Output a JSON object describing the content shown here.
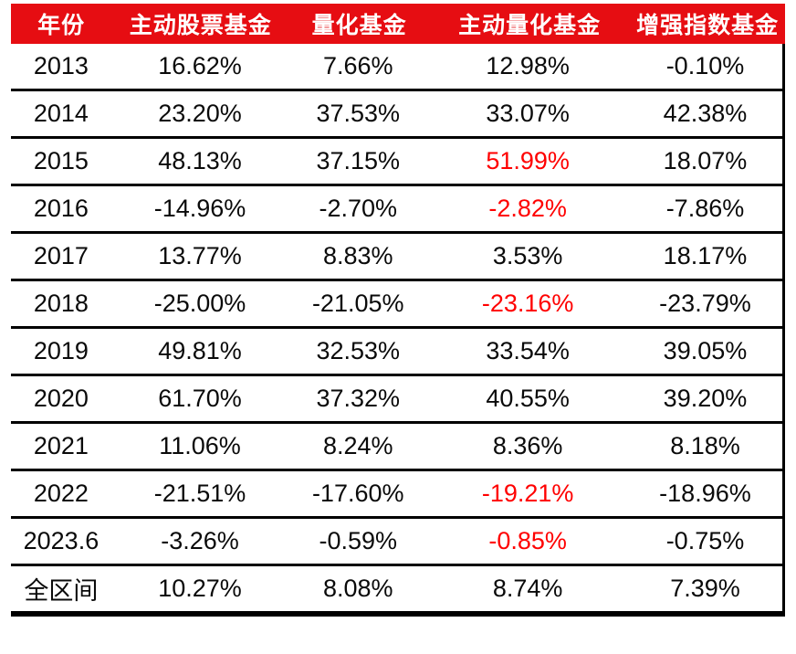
{
  "table": {
    "columns": [
      "年份",
      "主动股票基金",
      "量化基金",
      "主动量化基金",
      "增强指数基金"
    ],
    "rows": [
      {
        "year": "2013",
        "values": [
          "16.62%",
          "7.66%",
          "12.98%",
          "-0.10%"
        ],
        "red_values": []
      },
      {
        "year": "2014",
        "values": [
          "23.20%",
          "37.53%",
          "33.07%",
          "42.38%"
        ],
        "red_values": []
      },
      {
        "year": "2015",
        "values": [
          "48.13%",
          "37.15%",
          "51.99%",
          "18.07%"
        ],
        "red_values": [
          2
        ]
      },
      {
        "year": "2016",
        "values": [
          "-14.96%",
          "-2.70%",
          "-2.82%",
          "-7.86%"
        ],
        "red_values": [
          2
        ]
      },
      {
        "year": "2017",
        "values": [
          "13.77%",
          "8.83%",
          "3.53%",
          "18.17%"
        ],
        "red_values": []
      },
      {
        "year": "2018",
        "values": [
          "-25.00%",
          "-21.05%",
          "-23.16%",
          "-23.79%"
        ],
        "red_values": [
          2
        ]
      },
      {
        "year": "2019",
        "values": [
          "49.81%",
          "32.53%",
          "33.54%",
          "39.05%"
        ],
        "red_values": []
      },
      {
        "year": "2020",
        "values": [
          "61.70%",
          "37.32%",
          "40.55%",
          "39.20%"
        ],
        "red_values": []
      },
      {
        "year": "2021",
        "values": [
          "11.06%",
          "8.24%",
          "8.36%",
          "8.18%"
        ],
        "red_values": []
      },
      {
        "year": "2022",
        "values": [
          "-21.51%",
          "-17.60%",
          "-19.21%",
          "-18.96%"
        ],
        "red_values": [
          2
        ]
      },
      {
        "year": "2023.6",
        "values": [
          "-3.26%",
          "-0.59%",
          "-0.85%",
          "-0.75%"
        ],
        "red_values": [
          2
        ]
      },
      {
        "year": "全区间",
        "values": [
          "10.27%",
          "8.08%",
          "8.74%",
          "7.39%"
        ],
        "red_values": []
      }
    ]
  },
  "colors": {
    "header_bg": "#E60D12",
    "header_text": "#FFFFFF",
    "highlight_text": "#FF0000",
    "body_text": "#0A0A0A",
    "line_color": "#000000"
  },
  "chart_data": {
    "type": "table",
    "title": "",
    "categories": [
      "2013",
      "2014",
      "2015",
      "2016",
      "2017",
      "2018",
      "2019",
      "2020",
      "2021",
      "2022",
      "2023.6",
      "全区间"
    ],
    "series": [
      {
        "name": "主动股票基金",
        "values": [
          16.62,
          23.2,
          48.13,
          -14.96,
          13.77,
          -25.0,
          49.81,
          61.7,
          11.06,
          -21.51,
          -3.26,
          10.27
        ]
      },
      {
        "name": "量化基金",
        "values": [
          7.66,
          37.53,
          37.15,
          -2.7,
          8.83,
          -21.05,
          32.53,
          37.32,
          8.24,
          -17.6,
          -0.59,
          8.08
        ]
      },
      {
        "name": "主动量化基金",
        "values": [
          12.98,
          33.07,
          51.99,
          -2.82,
          3.53,
          -23.16,
          33.54,
          40.55,
          8.36,
          -19.21,
          -0.85,
          8.74
        ]
      },
      {
        "name": "增强指数基金",
        "values": [
          -0.1,
          42.38,
          18.07,
          -7.86,
          18.17,
          -23.79,
          39.05,
          39.2,
          8.18,
          -18.96,
          -0.75,
          7.39
        ]
      }
    ],
    "unit": "%",
    "highlighted_red_cells": [
      {
        "row": "2015",
        "column": "主动量化基金",
        "value": 51.99
      },
      {
        "row": "2016",
        "column": "主动量化基金",
        "value": -2.82
      },
      {
        "row": "2018",
        "column": "主动量化基金",
        "value": -23.16
      },
      {
        "row": "2022",
        "column": "主动量化基金",
        "value": -19.21
      },
      {
        "row": "2023.6",
        "column": "主动量化基金",
        "value": -0.85
      }
    ]
  }
}
